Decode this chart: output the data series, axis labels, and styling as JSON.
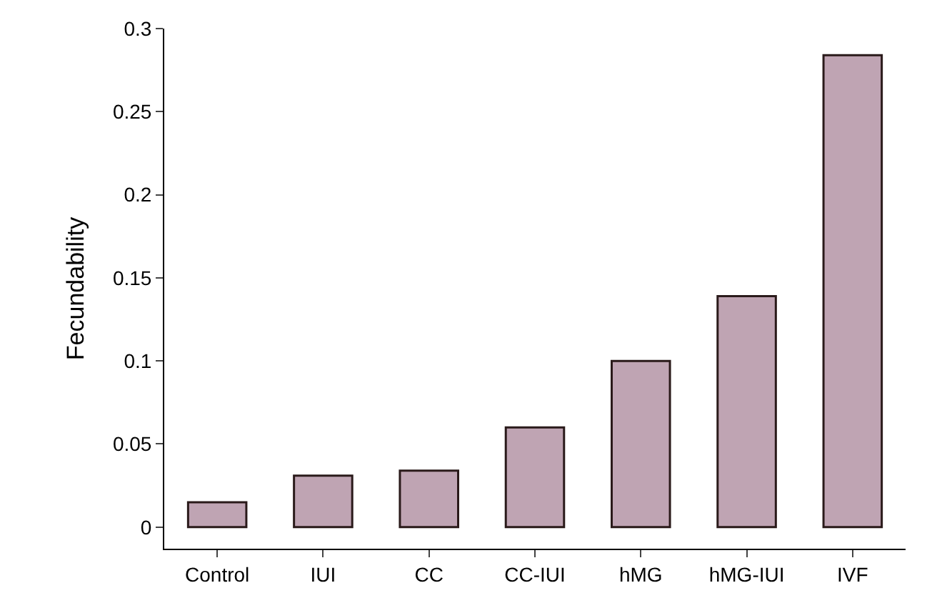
{
  "chart_data": {
    "type": "bar",
    "ylabel": "Fecundability",
    "categories": [
      "Control",
      "IUI",
      "CC",
      "CC-IUI",
      "hMG",
      "hMG-IUI",
      "IVF"
    ],
    "values": [
      0.015,
      0.031,
      0.034,
      0.06,
      0.1,
      0.139,
      0.284
    ],
    "color": "#bfa4b3",
    "ylim": [
      -0.013,
      0.3
    ],
    "yticks": [
      0,
      0.05,
      0.1,
      0.15,
      0.2,
      0.25,
      0.3
    ],
    "legend": false
  }
}
